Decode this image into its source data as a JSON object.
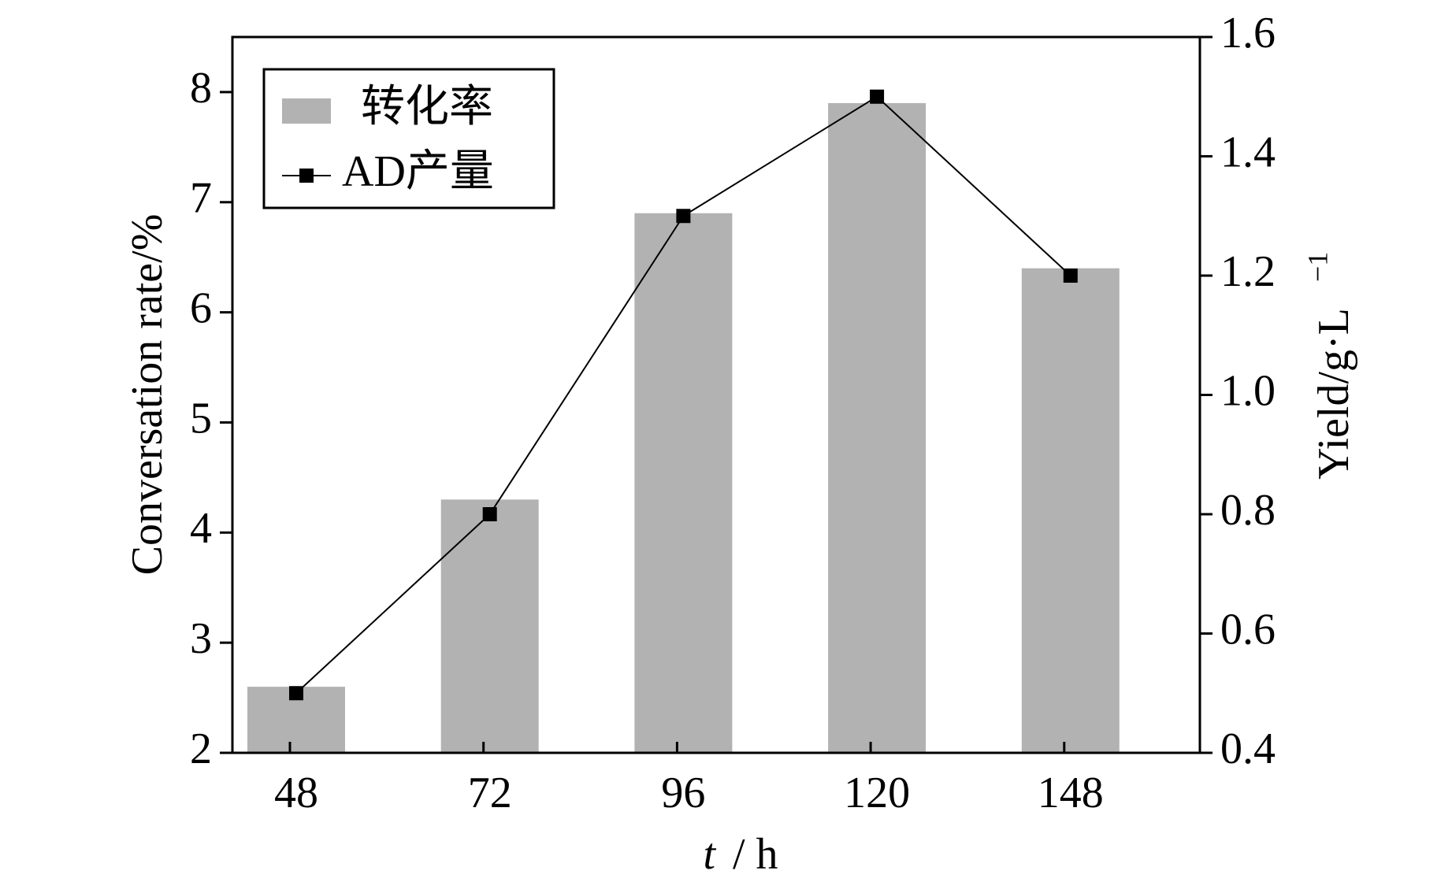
{
  "chart_data": {
    "type": "bar_line",
    "xlabel_var": "t",
    "xlabel_unit": "/ h",
    "ylabel": "Conversation rate/%",
    "y2label": "Yield/g·L",
    "y2label_sup": "−1",
    "categories": [
      "48",
      "72",
      "96",
      "120",
      "148"
    ],
    "series": [
      {
        "name": "转化率",
        "type": "bar",
        "color": "#b2b2b2",
        "values": [
          2.6,
          4.3,
          6.9,
          7.9,
          6.4
        ]
      },
      {
        "name": "AD产量",
        "type": "line",
        "axis": "y2",
        "color": "#000000",
        "values": [
          0.5,
          0.8,
          1.3,
          1.5,
          1.2
        ]
      }
    ],
    "ylim": [
      2,
      8.5
    ],
    "yticks": [
      2,
      3,
      4,
      5,
      6,
      7,
      8
    ],
    "y2lim": [
      0.4,
      1.6
    ],
    "y2ticks": [
      0.4,
      0.6,
      0.8,
      {
        "value": 1,
        "label": "1.0"
      },
      1.2,
      1.4,
      1.6
    ],
    "legend": "upper left"
  }
}
